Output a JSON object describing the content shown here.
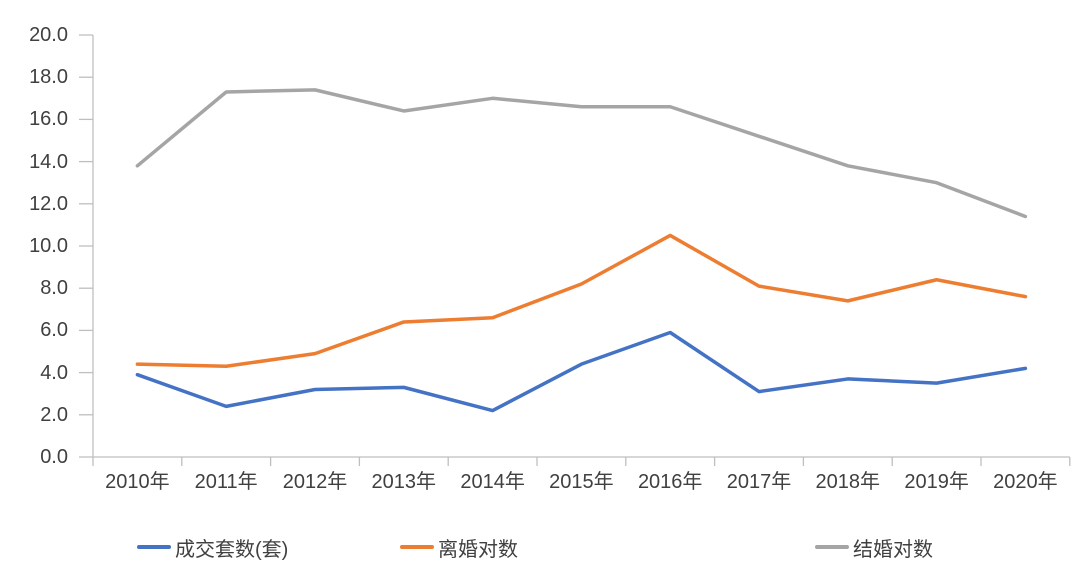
{
  "chart_data": {
    "type": "line",
    "title": "",
    "xlabel": "",
    "ylabel": "",
    "grid": false,
    "legend_position": "bottom",
    "categories": [
      "2010年",
      "2011年",
      "2012年",
      "2013年",
      "2014年",
      "2015年",
      "2016年",
      "2017年",
      "2018年",
      "2019年",
      "2020年"
    ],
    "series": [
      {
        "name": "成交套数(套)",
        "color": "#4472C4",
        "values": [
          3.9,
          2.4,
          3.2,
          3.3,
          2.2,
          4.4,
          5.9,
          3.1,
          3.7,
          3.5,
          4.2
        ]
      },
      {
        "name": "离婚对数",
        "color": "#ED7D31",
        "values": [
          4.4,
          4.3,
          4.9,
          6.4,
          6.6,
          8.2,
          10.5,
          8.1,
          7.4,
          8.4,
          7.6
        ]
      },
      {
        "name": "结婚对数",
        "color": "#A5A5A5",
        "values": [
          13.8,
          17.3,
          17.4,
          16.4,
          17.0,
          16.6,
          16.6,
          15.2,
          13.8,
          13.0,
          11.4
        ]
      }
    ],
    "ylim": [
      0,
      20
    ],
    "ytick_step": 2,
    "ytick_labels": [
      "0.0",
      "2.0",
      "4.0",
      "6.0",
      "8.0",
      "10.0",
      "12.0",
      "14.0",
      "16.0",
      "18.0",
      "20.0"
    ],
    "axis_color": "#BFBFBF",
    "label_color": "#404040"
  }
}
